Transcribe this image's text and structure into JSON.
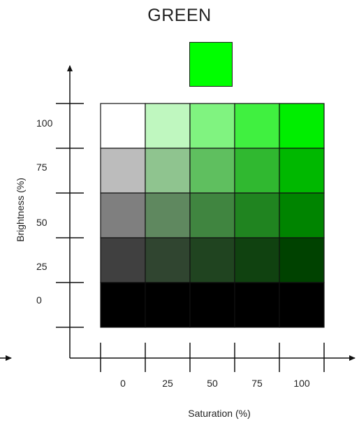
{
  "title": "GREEN",
  "base_color": "#00FF00",
  "chart_data": {
    "type": "heatmap",
    "x_axis": {
      "label": "Saturation (%)",
      "ticks": [
        "0",
        "25",
        "50",
        "75",
        "100"
      ],
      "values": [
        0,
        25,
        50,
        75,
        100
      ]
    },
    "y_axis": {
      "label": "Brightness (%)",
      "ticks": [
        "100",
        "75",
        "50",
        "25",
        "0"
      ],
      "values": [
        100,
        75,
        50,
        25,
        0
      ]
    },
    "grid": true,
    "cells": [
      [
        "#ffffff",
        "#bff7bf",
        "#80f380",
        "#40f040",
        "#00ee00"
      ],
      [
        "#bcbcbc",
        "#8fc48f",
        "#5fbf5f",
        "#30b830",
        "#00b800"
      ],
      [
        "#7f7f7f",
        "#5f885f",
        "#408540",
        "#208420",
        "#008400"
      ],
      [
        "#404040",
        "#304530",
        "#204420",
        "#104210",
        "#004200"
      ],
      [
        "#000000",
        "#000000",
        "#000000",
        "#000000",
        "#000000"
      ]
    ]
  }
}
